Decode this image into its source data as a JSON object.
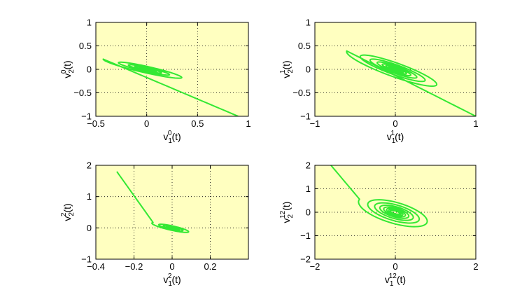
{
  "chart_data": [
    {
      "type": "line",
      "id": "p0",
      "xlabel": {
        "base": "v",
        "sub": "1",
        "sup": "0",
        "tail": "(t)"
      },
      "ylabel": {
        "base": "v",
        "sub": "2",
        "sup": "0",
        "tail": "(t)"
      },
      "xlim": [
        -0.5,
        1
      ],
      "ylim": [
        -1,
        1
      ],
      "xticks": [
        -0.5,
        0,
        0.5,
        1
      ],
      "yticks": [
        -1,
        -0.5,
        0,
        0.5,
        1
      ],
      "xtick_labels": [
        "−0.5",
        "0",
        "0.5",
        "1"
      ],
      "ytick_labels": [
        "−1",
        "−0.5",
        "0",
        "0.5",
        "1"
      ],
      "grid": true,
      "background": "#ffffc0",
      "line_color": "#33e833",
      "trajectory": {
        "start": [
          0.9,
          -1.0
        ],
        "entry": [
          -0.4,
          0.5
        ],
        "center": [
          0.0,
          0.0
        ],
        "major": 0.48,
        "minor": 0.08,
        "angle_deg": -27,
        "decay": 0.65,
        "turns": 6
      }
    },
    {
      "type": "line",
      "id": "p1",
      "xlabel": {
        "base": "v",
        "sub": "1",
        "sup": "1",
        "tail": "(t)"
      },
      "ylabel": {
        "base": "v",
        "sub": "2",
        "sup": "1",
        "tail": "(t)"
      },
      "xlim": [
        -1,
        1
      ],
      "ylim": [
        -1,
        1
      ],
      "xticks": [
        -1,
        0,
        1
      ],
      "yticks": [
        -1,
        -0.5,
        0,
        0.5,
        1
      ],
      "xtick_labels": [
        "−1",
        "0",
        "1"
      ],
      "ytick_labels": [
        "−1",
        "−0.5",
        "0",
        "0.5",
        "1"
      ],
      "grid": true,
      "background": "#ffffc0",
      "line_color": "#33e833",
      "trajectory": {
        "start": [
          1.0,
          -1.0
        ],
        "entry": [
          -0.55,
          0.55
        ],
        "center": [
          0.0,
          0.0
        ],
        "major": 0.72,
        "minor": 0.16,
        "angle_deg": -33,
        "decay": 0.72,
        "turns": 8
      }
    },
    {
      "type": "line",
      "id": "p2",
      "xlabel": {
        "base": "v",
        "sub": "1",
        "sup": "2",
        "tail": "(t)"
      },
      "ylabel": {
        "base": "v",
        "sub": "2",
        "sup": "2",
        "tail": "(t)"
      },
      "xlim": [
        -0.4,
        0.4
      ],
      "ylim": [
        -1,
        2
      ],
      "xticks": [
        -0.4,
        -0.2,
        0,
        0.2
      ],
      "yticks": [
        -1,
        0,
        1,
        2
      ],
      "xtick_labels": [
        "−0.4",
        "−0.2",
        "0",
        "0.2"
      ],
      "ytick_labels": [
        "−1",
        "0",
        "1",
        "2"
      ],
      "grid": true,
      "background": "#ffffc0",
      "line_color": "#33e833",
      "trajectory": {
        "start": [
          -0.29,
          1.8
        ],
        "entry": [
          0.17,
          -0.95
        ],
        "center": [
          0.0,
          0.0
        ],
        "major": 0.2,
        "minor": 0.05,
        "angle_deg": -60,
        "decay": 0.66,
        "turns": 6
      }
    },
    {
      "type": "line",
      "id": "p3",
      "xlabel": {
        "base": "v",
        "sub": "1",
        "sup": "12",
        "tail": "(t)"
      },
      "ylabel": {
        "base": "v",
        "sub": "2",
        "sup": "12",
        "tail": "(t)"
      },
      "xlim": [
        -2,
        2
      ],
      "ylim": [
        -2,
        2
      ],
      "xticks": [
        -2,
        0,
        2
      ],
      "yticks": [
        -2,
        -1,
        0,
        1,
        2
      ],
      "xtick_labels": [
        "−2",
        "0",
        "2"
      ],
      "ytick_labels": [
        "−2",
        "−1",
        "0",
        "1",
        "2"
      ],
      "grid": true,
      "background": "#ffffc0",
      "line_color": "#33e833",
      "trajectory": {
        "start": [
          -1.6,
          2.0
        ],
        "entry": [
          0.9,
          -0.8
        ],
        "center": [
          0.0,
          0.0
        ],
        "major": 1.05,
        "minor": 0.48,
        "angle_deg": -32,
        "decay": 0.75,
        "turns": 8
      }
    }
  ]
}
